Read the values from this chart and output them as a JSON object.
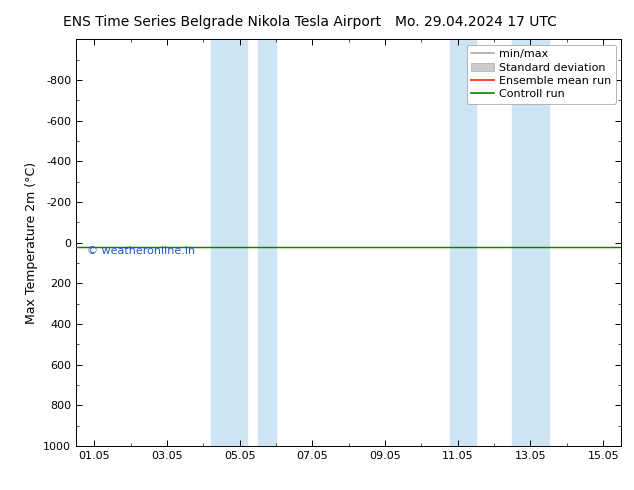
{
  "title_left": "ENS Time Series Belgrade Nikola Tesla Airport",
  "title_right": "Mo. 29.04.2024 17 UTC",
  "ylabel": "Max Temperature 2m (°C)",
  "ylim_top": -1000,
  "ylim_bottom": 1000,
  "yticks": [
    -800,
    -600,
    -400,
    -200,
    0,
    200,
    400,
    600,
    800,
    1000
  ],
  "xlim": [
    0.5,
    15.5
  ],
  "xtick_labels": [
    "01.05",
    "03.05",
    "05.05",
    "07.05",
    "09.05",
    "11.05",
    "13.05",
    "15.05"
  ],
  "xtick_positions": [
    1,
    3,
    5,
    7,
    9,
    11,
    13,
    15
  ],
  "blue_shade_regions": [
    [
      4.2,
      5.2
    ],
    [
      5.5,
      6.0
    ],
    [
      10.8,
      11.5
    ],
    [
      12.5,
      13.5
    ]
  ],
  "blue_shade_color": "#cde4f5",
  "control_run_y": 20,
  "ensemble_mean_y": 20,
  "control_run_color": "#008800",
  "ensemble_mean_color": "#ff2200",
  "watermark": "© weatheronline.in",
  "watermark_color": "#2255cc",
  "legend_items": [
    "min/max",
    "Standard deviation",
    "Ensemble mean run",
    "Controll run"
  ],
  "legend_line_colors": [
    "#aaaaaa",
    "#bbbbbb",
    "#ff2200",
    "#008800"
  ],
  "bg_color": "#ffffff",
  "plot_bg_color": "#ffffff",
  "spine_color": "#000000",
  "font_size_title": 10,
  "font_size_axis": 9,
  "font_size_ticks": 8,
  "font_size_legend": 8,
  "font_size_watermark": 8
}
